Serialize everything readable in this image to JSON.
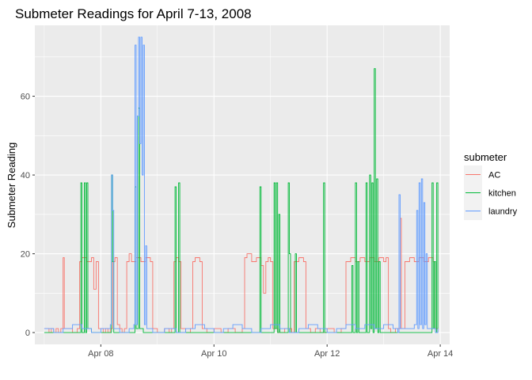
{
  "chart_data": {
    "type": "line",
    "title": "Submeter Readings for April 7-13, 2008",
    "xlabel": "",
    "ylabel": "Submeter Reading",
    "xlim": [
      "2008-04-06T20:00",
      "2008-04-14T04:00"
    ],
    "ylim": [
      -3,
      78
    ],
    "x_ticks": [
      {
        "x": "2008-04-08",
        "label": "Apr 08"
      },
      {
        "x": "2008-04-10",
        "label": "Apr 10"
      },
      {
        "x": "2008-04-12",
        "label": "Apr 12"
      },
      {
        "x": "2008-04-14",
        "label": "Apr 14"
      }
    ],
    "y_ticks": [
      0,
      20,
      40,
      60
    ],
    "grid": true,
    "panel_background": "#ebebeb",
    "legend": {
      "title": "submeter",
      "placement": "right"
    },
    "series": [
      {
        "name": "AC",
        "color": "#F8766D",
        "points": [
          [
            "2008-04-07T00:00",
            1
          ],
          [
            "2008-04-07T02:00",
            0
          ],
          [
            "2008-04-07T03:00",
            1
          ],
          [
            "2008-04-07T04:00",
            0
          ],
          [
            "2008-04-07T05:00",
            1
          ],
          [
            "2008-04-07T06:00",
            0
          ],
          [
            "2008-04-07T07:00",
            1
          ],
          [
            "2008-04-07T08:00",
            19
          ],
          [
            "2008-04-07T08:30",
            1
          ],
          [
            "2008-04-07T10:00",
            1
          ],
          [
            "2008-04-07T12:00",
            0
          ],
          [
            "2008-04-07T14:00",
            1
          ],
          [
            "2008-04-07T15:00",
            18
          ],
          [
            "2008-04-07T16:00",
            19
          ],
          [
            "2008-04-07T18:00",
            18
          ],
          [
            "2008-04-07T20:00",
            19
          ],
          [
            "2008-04-07T21:00",
            11
          ],
          [
            "2008-04-07T22:00",
            18
          ],
          [
            "2008-04-07T23:00",
            1
          ],
          [
            "2008-04-08T00:00",
            1
          ],
          [
            "2008-04-08T01:00",
            0
          ],
          [
            "2008-04-08T02:00",
            1
          ],
          [
            "2008-04-08T03:00",
            0
          ],
          [
            "2008-04-08T04:00",
            1
          ],
          [
            "2008-04-08T05:00",
            18
          ],
          [
            "2008-04-08T06:00",
            19
          ],
          [
            "2008-04-08T07:00",
            2
          ],
          [
            "2008-04-08T08:00",
            1
          ],
          [
            "2008-04-08T09:00",
            0
          ],
          [
            "2008-04-08T10:00",
            1
          ],
          [
            "2008-04-08T11:00",
            18
          ],
          [
            "2008-04-08T12:00",
            20
          ],
          [
            "2008-04-08T13:00",
            18
          ],
          [
            "2008-04-08T15:00",
            19
          ],
          [
            "2008-04-08T17:00",
            18
          ],
          [
            "2008-04-08T19:00",
            19
          ],
          [
            "2008-04-08T21:00",
            18
          ],
          [
            "2008-04-08T22:00",
            1
          ],
          [
            "2008-04-09T00:00",
            0
          ],
          [
            "2008-04-09T03:00",
            1
          ],
          [
            "2008-04-09T05:00",
            0
          ],
          [
            "2008-04-09T06:00",
            1
          ],
          [
            "2008-04-09T07:00",
            18
          ],
          [
            "2008-04-09T08:00",
            19
          ],
          [
            "2008-04-09T09:00",
            18
          ],
          [
            "2008-04-09T10:00",
            1
          ],
          [
            "2008-04-09T12:00",
            0
          ],
          [
            "2008-04-09T14:00",
            1
          ],
          [
            "2008-04-09T15:00",
            18
          ],
          [
            "2008-04-09T16:00",
            19
          ],
          [
            "2008-04-09T18:00",
            18
          ],
          [
            "2008-04-09T19:00",
            1
          ],
          [
            "2008-04-09T21:00",
            0
          ],
          [
            "2008-04-10T00:00",
            1
          ],
          [
            "2008-04-10T03:00",
            0
          ],
          [
            "2008-04-10T06:00",
            1
          ],
          [
            "2008-04-10T09:00",
            0
          ],
          [
            "2008-04-10T12:00",
            1
          ],
          [
            "2008-04-10T13:00",
            19
          ],
          [
            "2008-04-10T14:00",
            20
          ],
          [
            "2008-04-10T16:00",
            18
          ],
          [
            "2008-04-10T18:00",
            19
          ],
          [
            "2008-04-10T20:00",
            17
          ],
          [
            "2008-04-10T21:00",
            10
          ],
          [
            "2008-04-10T22:00",
            18
          ],
          [
            "2008-04-10T23:00",
            19
          ],
          [
            "2008-04-11T00:00",
            18
          ],
          [
            "2008-04-11T01:00",
            1
          ],
          [
            "2008-04-11T03:00",
            0
          ],
          [
            "2008-04-11T06:00",
            1
          ],
          [
            "2008-04-11T09:00",
            0
          ],
          [
            "2008-04-11T10:00",
            18
          ],
          [
            "2008-04-11T12:00",
            19
          ],
          [
            "2008-04-11T14:00",
            18
          ],
          [
            "2008-04-11T15:00",
            1
          ],
          [
            "2008-04-11T17:00",
            0
          ],
          [
            "2008-04-11T19:00",
            1
          ],
          [
            "2008-04-11T21:00",
            0
          ],
          [
            "2008-04-12T00:00",
            1
          ],
          [
            "2008-04-12T03:00",
            0
          ],
          [
            "2008-04-12T06:00",
            1
          ],
          [
            "2008-04-12T08:00",
            18
          ],
          [
            "2008-04-12T10:00",
            19
          ],
          [
            "2008-04-12T12:00",
            18
          ],
          [
            "2008-04-12T14:00",
            19
          ],
          [
            "2008-04-12T16:00",
            18
          ],
          [
            "2008-04-12T18:00",
            19
          ],
          [
            "2008-04-12T20:00",
            18
          ],
          [
            "2008-04-12T22:00",
            19
          ],
          [
            "2008-04-13T00:00",
            18
          ],
          [
            "2008-04-13T01:00",
            19
          ],
          [
            "2008-04-13T02:00",
            1
          ],
          [
            "2008-04-13T03:00",
            0
          ],
          [
            "2008-04-13T05:00",
            1
          ],
          [
            "2008-04-13T07:00",
            29
          ],
          [
            "2008-04-13T07:30",
            1
          ],
          [
            "2008-04-13T09:00",
            18
          ],
          [
            "2008-04-13T11:00",
            19
          ],
          [
            "2008-04-13T13:00",
            18
          ],
          [
            "2008-04-13T15:00",
            19
          ],
          [
            "2008-04-13T17:00",
            18
          ],
          [
            "2008-04-13T19:00",
            19
          ],
          [
            "2008-04-13T21:00",
            18
          ],
          [
            "2008-04-13T22:00",
            1
          ],
          [
            "2008-04-13T23:00",
            0
          ]
        ]
      },
      {
        "name": "kitchen",
        "color": "#00BA38",
        "points": [
          [
            "2008-04-07T00:00",
            0
          ],
          [
            "2008-04-07T15:00",
            0
          ],
          [
            "2008-04-07T15:30",
            38
          ],
          [
            "2008-04-07T16:00",
            0
          ],
          [
            "2008-04-07T17:00",
            38
          ],
          [
            "2008-04-07T17:30",
            0
          ],
          [
            "2008-04-07T18:00",
            38
          ],
          [
            "2008-04-07T18:30",
            1
          ],
          [
            "2008-04-07T20:00",
            0
          ],
          [
            "2008-04-08T04:00",
            0
          ],
          [
            "2008-04-08T04:30",
            40
          ],
          [
            "2008-04-08T05:00",
            18
          ],
          [
            "2008-04-08T05:30",
            0
          ],
          [
            "2008-04-08T14:00",
            0
          ],
          [
            "2008-04-08T14:30",
            37
          ],
          [
            "2008-04-08T15:00",
            1
          ],
          [
            "2008-04-08T16:00",
            57
          ],
          [
            "2008-04-08T16:30",
            1
          ],
          [
            "2008-04-08T18:00",
            0
          ],
          [
            "2008-04-09T07:00",
            0
          ],
          [
            "2008-04-09T07:30",
            37
          ],
          [
            "2008-04-09T08:00",
            0
          ],
          [
            "2008-04-09T09:00",
            38
          ],
          [
            "2008-04-09T09:30",
            0
          ],
          [
            "2008-04-10T19:00",
            0
          ],
          [
            "2008-04-10T19:30",
            37
          ],
          [
            "2008-04-10T20:00",
            0
          ],
          [
            "2008-04-11T01:00",
            0
          ],
          [
            "2008-04-11T01:30",
            38
          ],
          [
            "2008-04-11T02:00",
            1
          ],
          [
            "2008-04-11T02:30",
            38
          ],
          [
            "2008-04-11T03:00",
            0
          ],
          [
            "2008-04-11T03:30",
            30
          ],
          [
            "2008-04-11T04:00",
            0
          ],
          [
            "2008-04-11T07:00",
            0
          ],
          [
            "2008-04-11T07:30",
            38
          ],
          [
            "2008-04-11T08:00",
            20
          ],
          [
            "2008-04-11T08:30",
            0
          ],
          [
            "2008-04-11T10:00",
            0
          ],
          [
            "2008-04-11T10:30",
            20
          ],
          [
            "2008-04-11T11:00",
            0
          ],
          [
            "2008-04-11T22:00",
            0
          ],
          [
            "2008-04-11T22:30",
            38
          ],
          [
            "2008-04-11T23:00",
            0
          ],
          [
            "2008-04-12T10:00",
            0
          ],
          [
            "2008-04-12T10:30",
            17
          ],
          [
            "2008-04-12T11:00",
            0
          ],
          [
            "2008-04-12T12:00",
            38
          ],
          [
            "2008-04-12T12:30",
            0
          ],
          [
            "2008-04-12T13:00",
            18
          ],
          [
            "2008-04-12T13:30",
            0
          ],
          [
            "2008-04-12T16:00",
            0
          ],
          [
            "2008-04-12T16:30",
            38
          ],
          [
            "2008-04-12T17:00",
            0
          ],
          [
            "2008-04-12T18:00",
            40
          ],
          [
            "2008-04-12T18:30",
            1
          ],
          [
            "2008-04-12T19:00",
            38
          ],
          [
            "2008-04-12T19:30",
            0
          ],
          [
            "2008-04-12T20:00",
            67
          ],
          [
            "2008-04-12T20:30",
            1
          ],
          [
            "2008-04-12T21:00",
            39
          ],
          [
            "2008-04-12T21:30",
            0
          ],
          [
            "2008-04-12T22:00",
            18
          ],
          [
            "2008-04-12T22:30",
            0
          ],
          [
            "2008-04-13T20:00",
            0
          ],
          [
            "2008-04-13T20:30",
            38
          ],
          [
            "2008-04-13T21:00",
            1
          ],
          [
            "2008-04-13T21:30",
            18
          ],
          [
            "2008-04-13T22:00",
            0
          ],
          [
            "2008-04-13T22:30",
            38
          ],
          [
            "2008-04-13T23:00",
            0
          ]
        ]
      },
      {
        "name": "laundry",
        "color": "#619CFF",
        "points": [
          [
            "2008-04-07T00:00",
            1
          ],
          [
            "2008-04-07T04:00",
            0
          ],
          [
            "2008-04-07T08:00",
            1
          ],
          [
            "2008-04-07T12:00",
            2
          ],
          [
            "2008-04-07T16:00",
            1
          ],
          [
            "2008-04-07T20:00",
            0
          ],
          [
            "2008-04-08T00:00",
            1
          ],
          [
            "2008-04-08T04:00",
            2
          ],
          [
            "2008-04-08T04:30",
            40
          ],
          [
            "2008-04-08T05:00",
            31
          ],
          [
            "2008-04-08T05:30",
            1
          ],
          [
            "2008-04-08T08:00",
            0
          ],
          [
            "2008-04-08T12:00",
            1
          ],
          [
            "2008-04-08T14:00",
            2
          ],
          [
            "2008-04-08T14:30",
            73
          ],
          [
            "2008-04-08T15:00",
            2
          ],
          [
            "2008-04-08T15:30",
            55
          ],
          [
            "2008-04-08T16:00",
            75
          ],
          [
            "2008-04-08T16:30",
            48
          ],
          [
            "2008-04-08T17:00",
            75
          ],
          [
            "2008-04-08T17:30",
            40
          ],
          [
            "2008-04-08T18:00",
            73
          ],
          [
            "2008-04-08T18:30",
            2
          ],
          [
            "2008-04-08T19:00",
            22
          ],
          [
            "2008-04-08T19:30",
            1
          ],
          [
            "2008-04-08T22:00",
            0
          ],
          [
            "2008-04-09T03:00",
            1
          ],
          [
            "2008-04-09T08:00",
            0
          ],
          [
            "2008-04-09T12:00",
            1
          ],
          [
            "2008-04-09T16:00",
            2
          ],
          [
            "2008-04-09T20:00",
            1
          ],
          [
            "2008-04-10T00:00",
            0
          ],
          [
            "2008-04-10T04:00",
            1
          ],
          [
            "2008-04-10T08:00",
            2
          ],
          [
            "2008-04-10T12:00",
            1
          ],
          [
            "2008-04-10T16:00",
            0
          ],
          [
            "2008-04-10T20:00",
            1
          ],
          [
            "2008-04-11T00:00",
            2
          ],
          [
            "2008-04-11T04:00",
            1
          ],
          [
            "2008-04-11T08:00",
            0
          ],
          [
            "2008-04-11T12:00",
            1
          ],
          [
            "2008-04-11T16:00",
            2
          ],
          [
            "2008-04-11T20:00",
            1
          ],
          [
            "2008-04-12T00:00",
            0
          ],
          [
            "2008-04-12T04:00",
            1
          ],
          [
            "2008-04-12T08:00",
            2
          ],
          [
            "2008-04-12T12:00",
            1
          ],
          [
            "2008-04-12T16:00",
            2
          ],
          [
            "2008-04-12T20:00",
            1
          ],
          [
            "2008-04-13T00:00",
            2
          ],
          [
            "2008-04-13T04:00",
            1
          ],
          [
            "2008-04-13T06:00",
            0
          ],
          [
            "2008-04-13T06:30",
            35
          ],
          [
            "2008-04-13T07:00",
            1
          ],
          [
            "2008-04-13T13:00",
            2
          ],
          [
            "2008-04-13T14:00",
            31
          ],
          [
            "2008-04-13T14:30",
            1
          ],
          [
            "2008-04-13T15:00",
            38
          ],
          [
            "2008-04-13T15:30",
            2
          ],
          [
            "2008-04-13T16:00",
            39
          ],
          [
            "2008-04-13T16:30",
            1
          ],
          [
            "2008-04-13T17:00",
            33
          ],
          [
            "2008-04-13T17:30",
            2
          ],
          [
            "2008-04-13T18:00",
            20
          ],
          [
            "2008-04-13T18:30",
            1
          ],
          [
            "2008-04-13T22:00",
            0
          ],
          [
            "2008-04-13T23:00",
            1
          ]
        ]
      }
    ]
  }
}
